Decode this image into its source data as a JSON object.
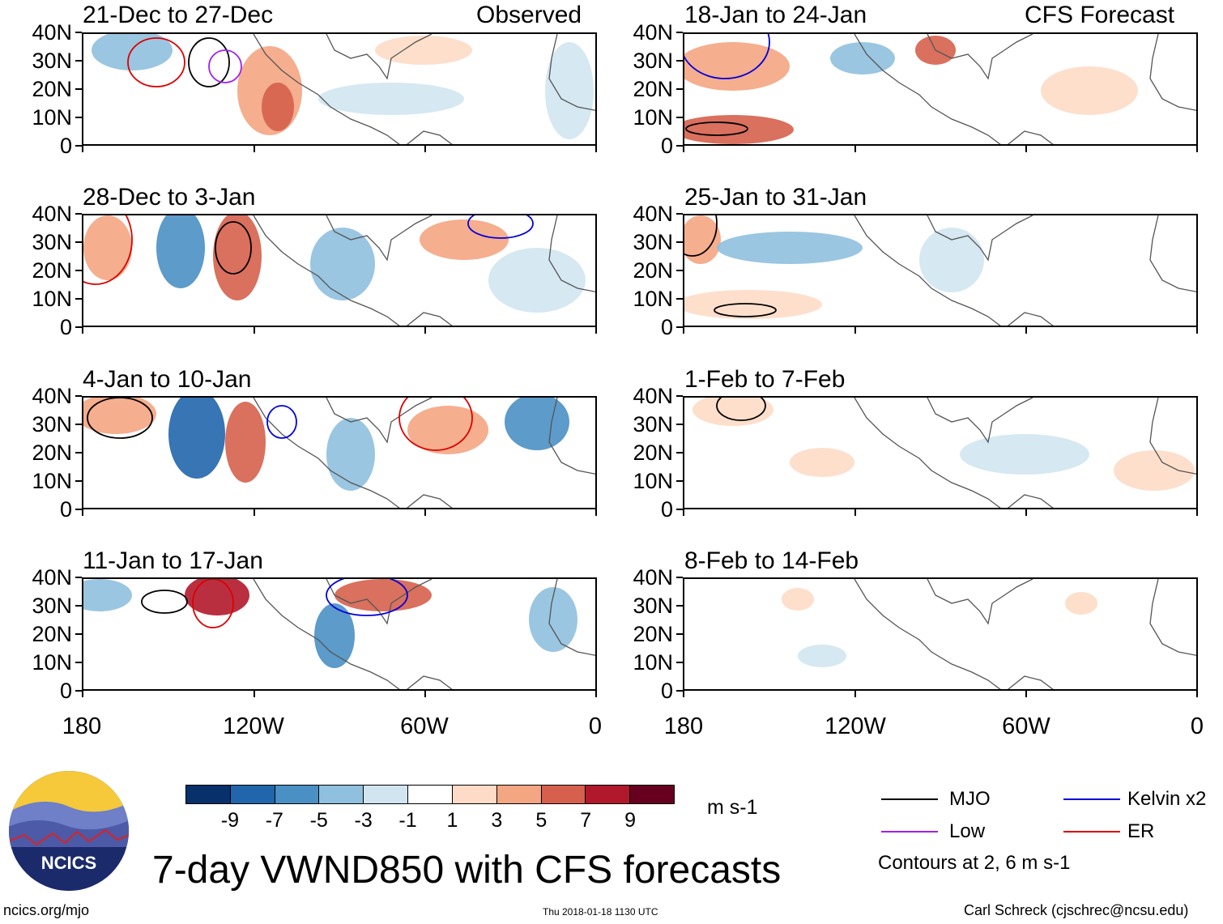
{
  "columns": {
    "left_label": "Observed",
    "right_label": "CFS Forecast"
  },
  "panels": [
    {
      "period": "21-Dec to 27-Dec",
      "source": "Observed"
    },
    {
      "period": "18-Jan to 24-Jan",
      "source": "CFS Forecast"
    },
    {
      "period": "28-Dec to 3-Jan",
      "source": "Observed"
    },
    {
      "period": "25-Jan to 31-Jan",
      "source": "CFS Forecast"
    },
    {
      "period": "4-Jan to 10-Jan",
      "source": "Observed"
    },
    {
      "period": "1-Feb to 7-Feb",
      "source": "CFS Forecast"
    },
    {
      "period": "11-Jan to 17-Jan",
      "source": "Observed"
    },
    {
      "period": "8-Feb to 14-Feb",
      "source": "CFS Forecast"
    }
  ],
  "axes": {
    "lat_labels": [
      "40N",
      "30N",
      "20N",
      "10N",
      "0"
    ],
    "lon_labels": [
      "180",
      "120W",
      "60W",
      "0"
    ]
  },
  "colorbar": {
    "labels": [
      "-9",
      "-7",
      "-5",
      "-3",
      "-1",
      "1",
      "3",
      "5",
      "7",
      "9"
    ],
    "colors": [
      "#08306b",
      "#2166ac",
      "#4a90c4",
      "#8fc0de",
      "#d1e5f0",
      "#ffffff",
      "#fddbc7",
      "#f4a582",
      "#d6604d",
      "#b2182b",
      "#67001f"
    ],
    "units": "m s-1"
  },
  "legend": {
    "items": [
      {
        "label": "MJO",
        "color": "#000000"
      },
      {
        "label": "Kelvin x2",
        "color": "#0000dd"
      },
      {
        "label": "Low",
        "color": "#a020f0"
      },
      {
        "label": "ER",
        "color": "#dd0000"
      }
    ],
    "note": "Contours at 2, 6 m s-1"
  },
  "title": "7-day VWND850 with CFS forecasts",
  "logo_text": "NCICS",
  "footer": {
    "left": "ncics.org/mjo",
    "center": "Thu 2018-01-18 1130 UTC",
    "right": "Carl Schreck (cjschrec@ncsu.edu)"
  }
}
